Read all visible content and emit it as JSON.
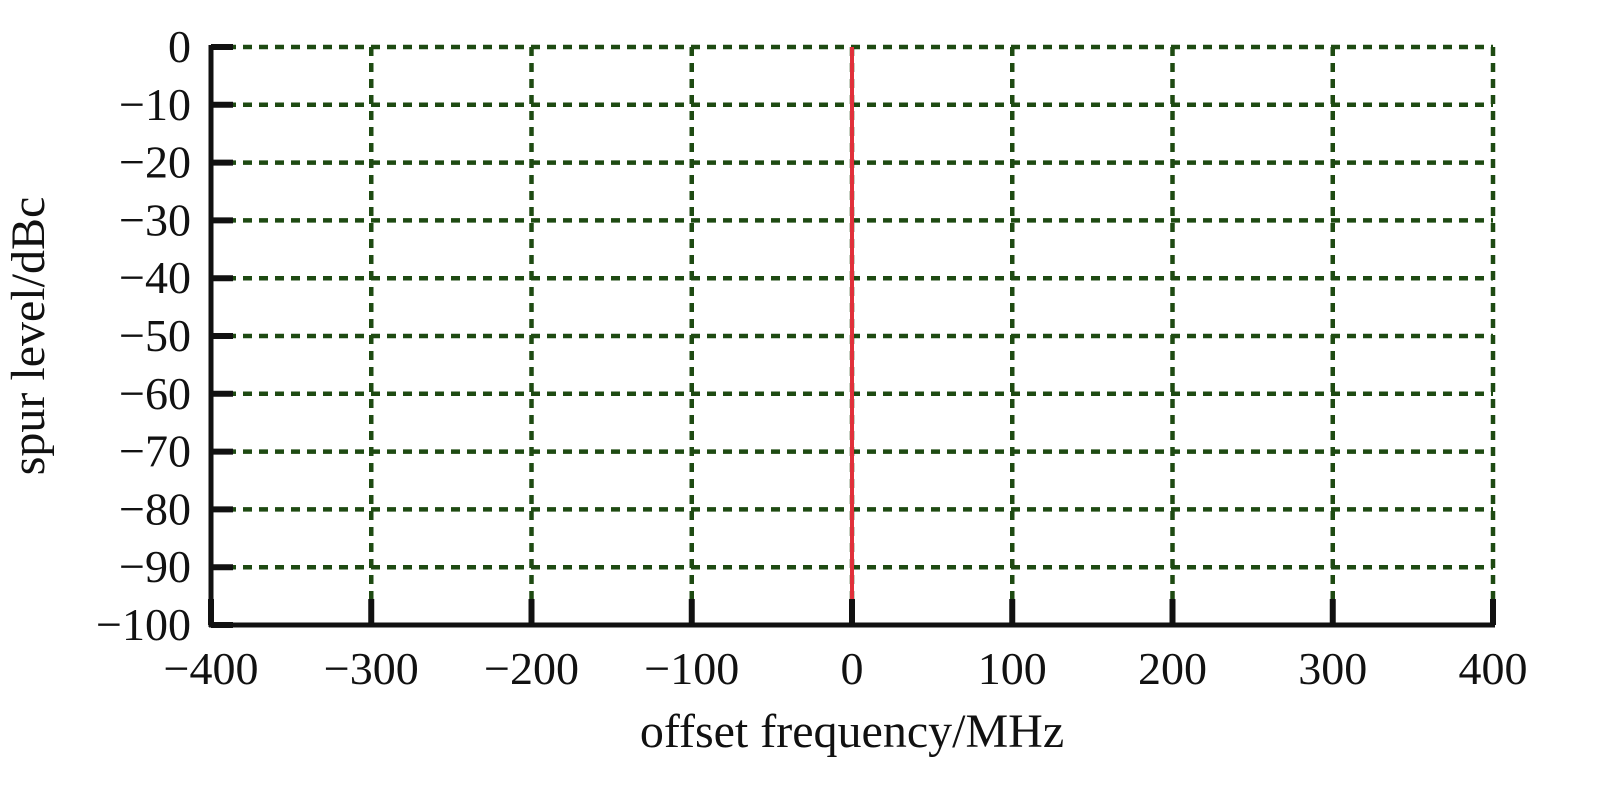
{
  "chart_data": {
    "type": "line",
    "title": "",
    "xlabel": "offset frequency/MHz",
    "ylabel": "spur level/dBc",
    "xlim": [
      -400,
      400
    ],
    "ylim": [
      -100,
      0
    ],
    "x_ticks": [
      -400,
      -300,
      -200,
      -100,
      0,
      100,
      200,
      300,
      400
    ],
    "y_ticks": [
      0,
      -10,
      -20,
      -30,
      -40,
      -50,
      -60,
      -70,
      -80,
      -90,
      -100
    ],
    "x_tick_labels": [
      "−400",
      "−300",
      "−200",
      "−100",
      "0",
      "100",
      "200",
      "300",
      "400"
    ],
    "y_tick_labels": [
      "0",
      "−10",
      "−20",
      "−30",
      "−40",
      "−50",
      "−60",
      "−70",
      "−80",
      "−90",
      "−100"
    ],
    "grid": true,
    "series": [
      {
        "color": "#e0303a",
        "points": [
          {
            "x": 0,
            "y": -100
          },
          {
            "x": 0,
            "y": 0
          }
        ]
      }
    ],
    "colors": {
      "grid": "#1e4a12",
      "axis": "#111111",
      "series": "#e0303a"
    }
  }
}
